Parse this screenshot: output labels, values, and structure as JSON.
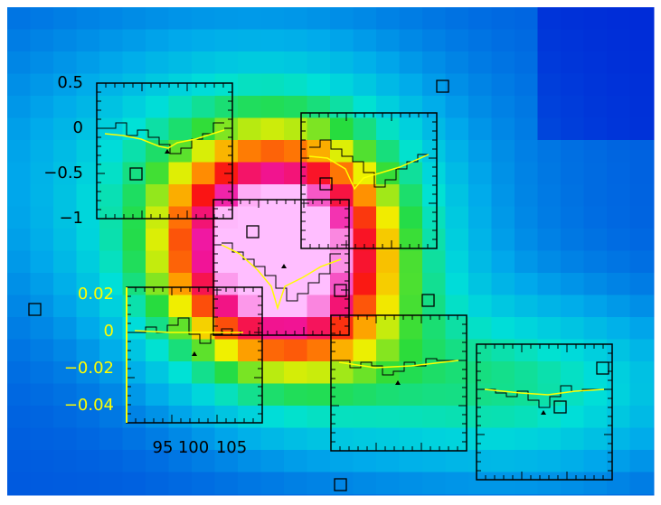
{
  "black_axis": {
    "ticks": [
      "0.5",
      "0",
      "−0.5",
      "−1"
    ]
  },
  "yellow_axis": {
    "ticks": [
      "0.02",
      "0",
      "−0.02",
      "−0.04"
    ]
  },
  "x_axis": {
    "ticks": [
      "95",
      "100",
      "105"
    ]
  }
}
